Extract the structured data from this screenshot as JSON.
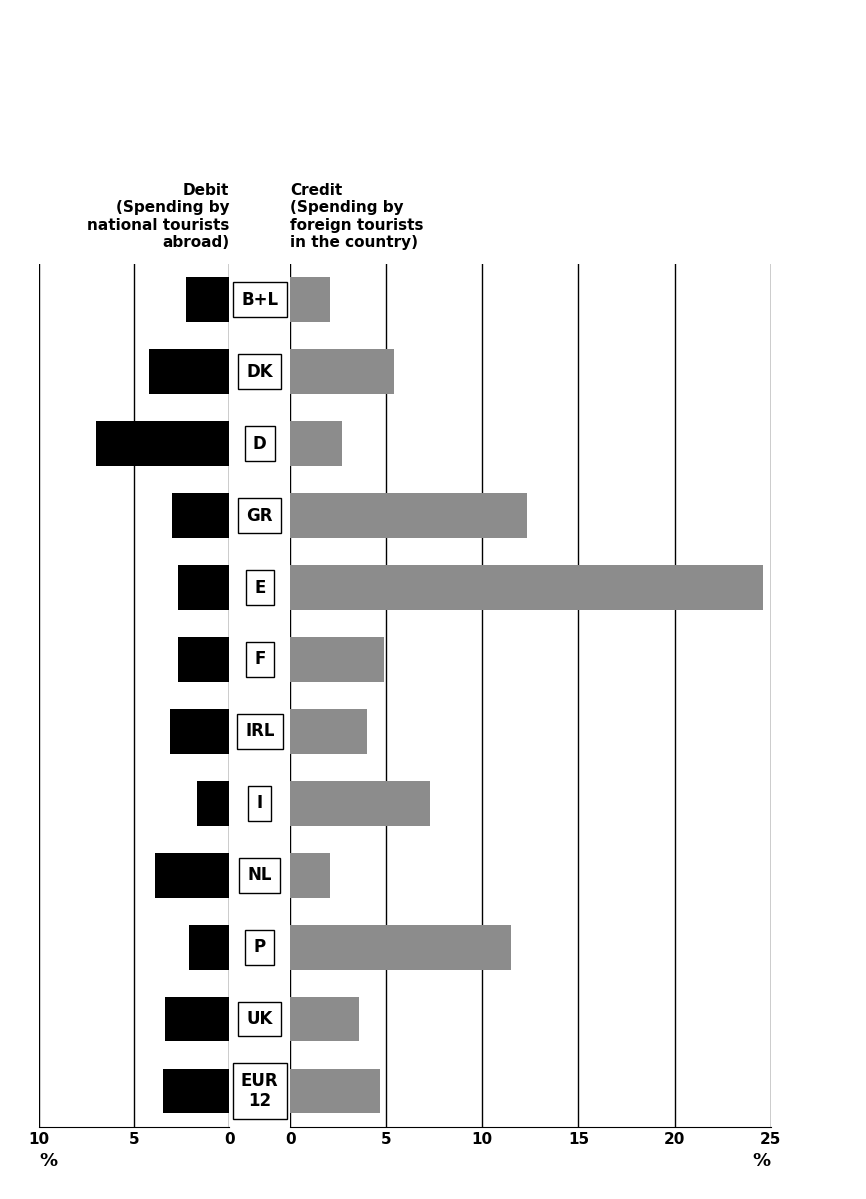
{
  "chart_data": [
    {
      "type": "bar",
      "orientation": "horizontal",
      "title": "Debit\n(Spending by\nnational tourists\nabroad)",
      "xlabel": "%",
      "categories": [
        "B+L",
        "DK",
        "D",
        "GR",
        "E",
        "F",
        "IRL",
        "I",
        "NL",
        "P",
        "UK",
        "EUR\n12"
      ],
      "values": [
        2.3,
        4.2,
        7.0,
        3.0,
        2.7,
        2.7,
        3.1,
        1.7,
        3.9,
        2.1,
        3.4,
        3.5
      ],
      "color": "#000000",
      "xlim": [
        10,
        0
      ],
      "xticks": [
        10,
        5,
        0
      ],
      "grid": true,
      "tick_labels": "x"
    },
    {
      "type": "bar",
      "orientation": "horizontal",
      "title": "Credit\n(Spending by\nforeign tourists\nin the country)",
      "xlabel": "%",
      "categories": [
        "B+L",
        "DK",
        "D",
        "GR",
        "E",
        "F",
        "IRL",
        "I",
        "NL",
        "P",
        "UK",
        "EUR\n12"
      ],
      "values": [
        2.1,
        5.4,
        2.7,
        12.3,
        24.6,
        4.9,
        4.0,
        7.3,
        2.1,
        11.5,
        3.6,
        4.7
      ],
      "color": "#8c8c8c",
      "xlim": [
        0,
        25
      ],
      "xticks": [
        0,
        5,
        10,
        15,
        20,
        25
      ],
      "grid": true,
      "tick_labels": "x"
    }
  ]
}
